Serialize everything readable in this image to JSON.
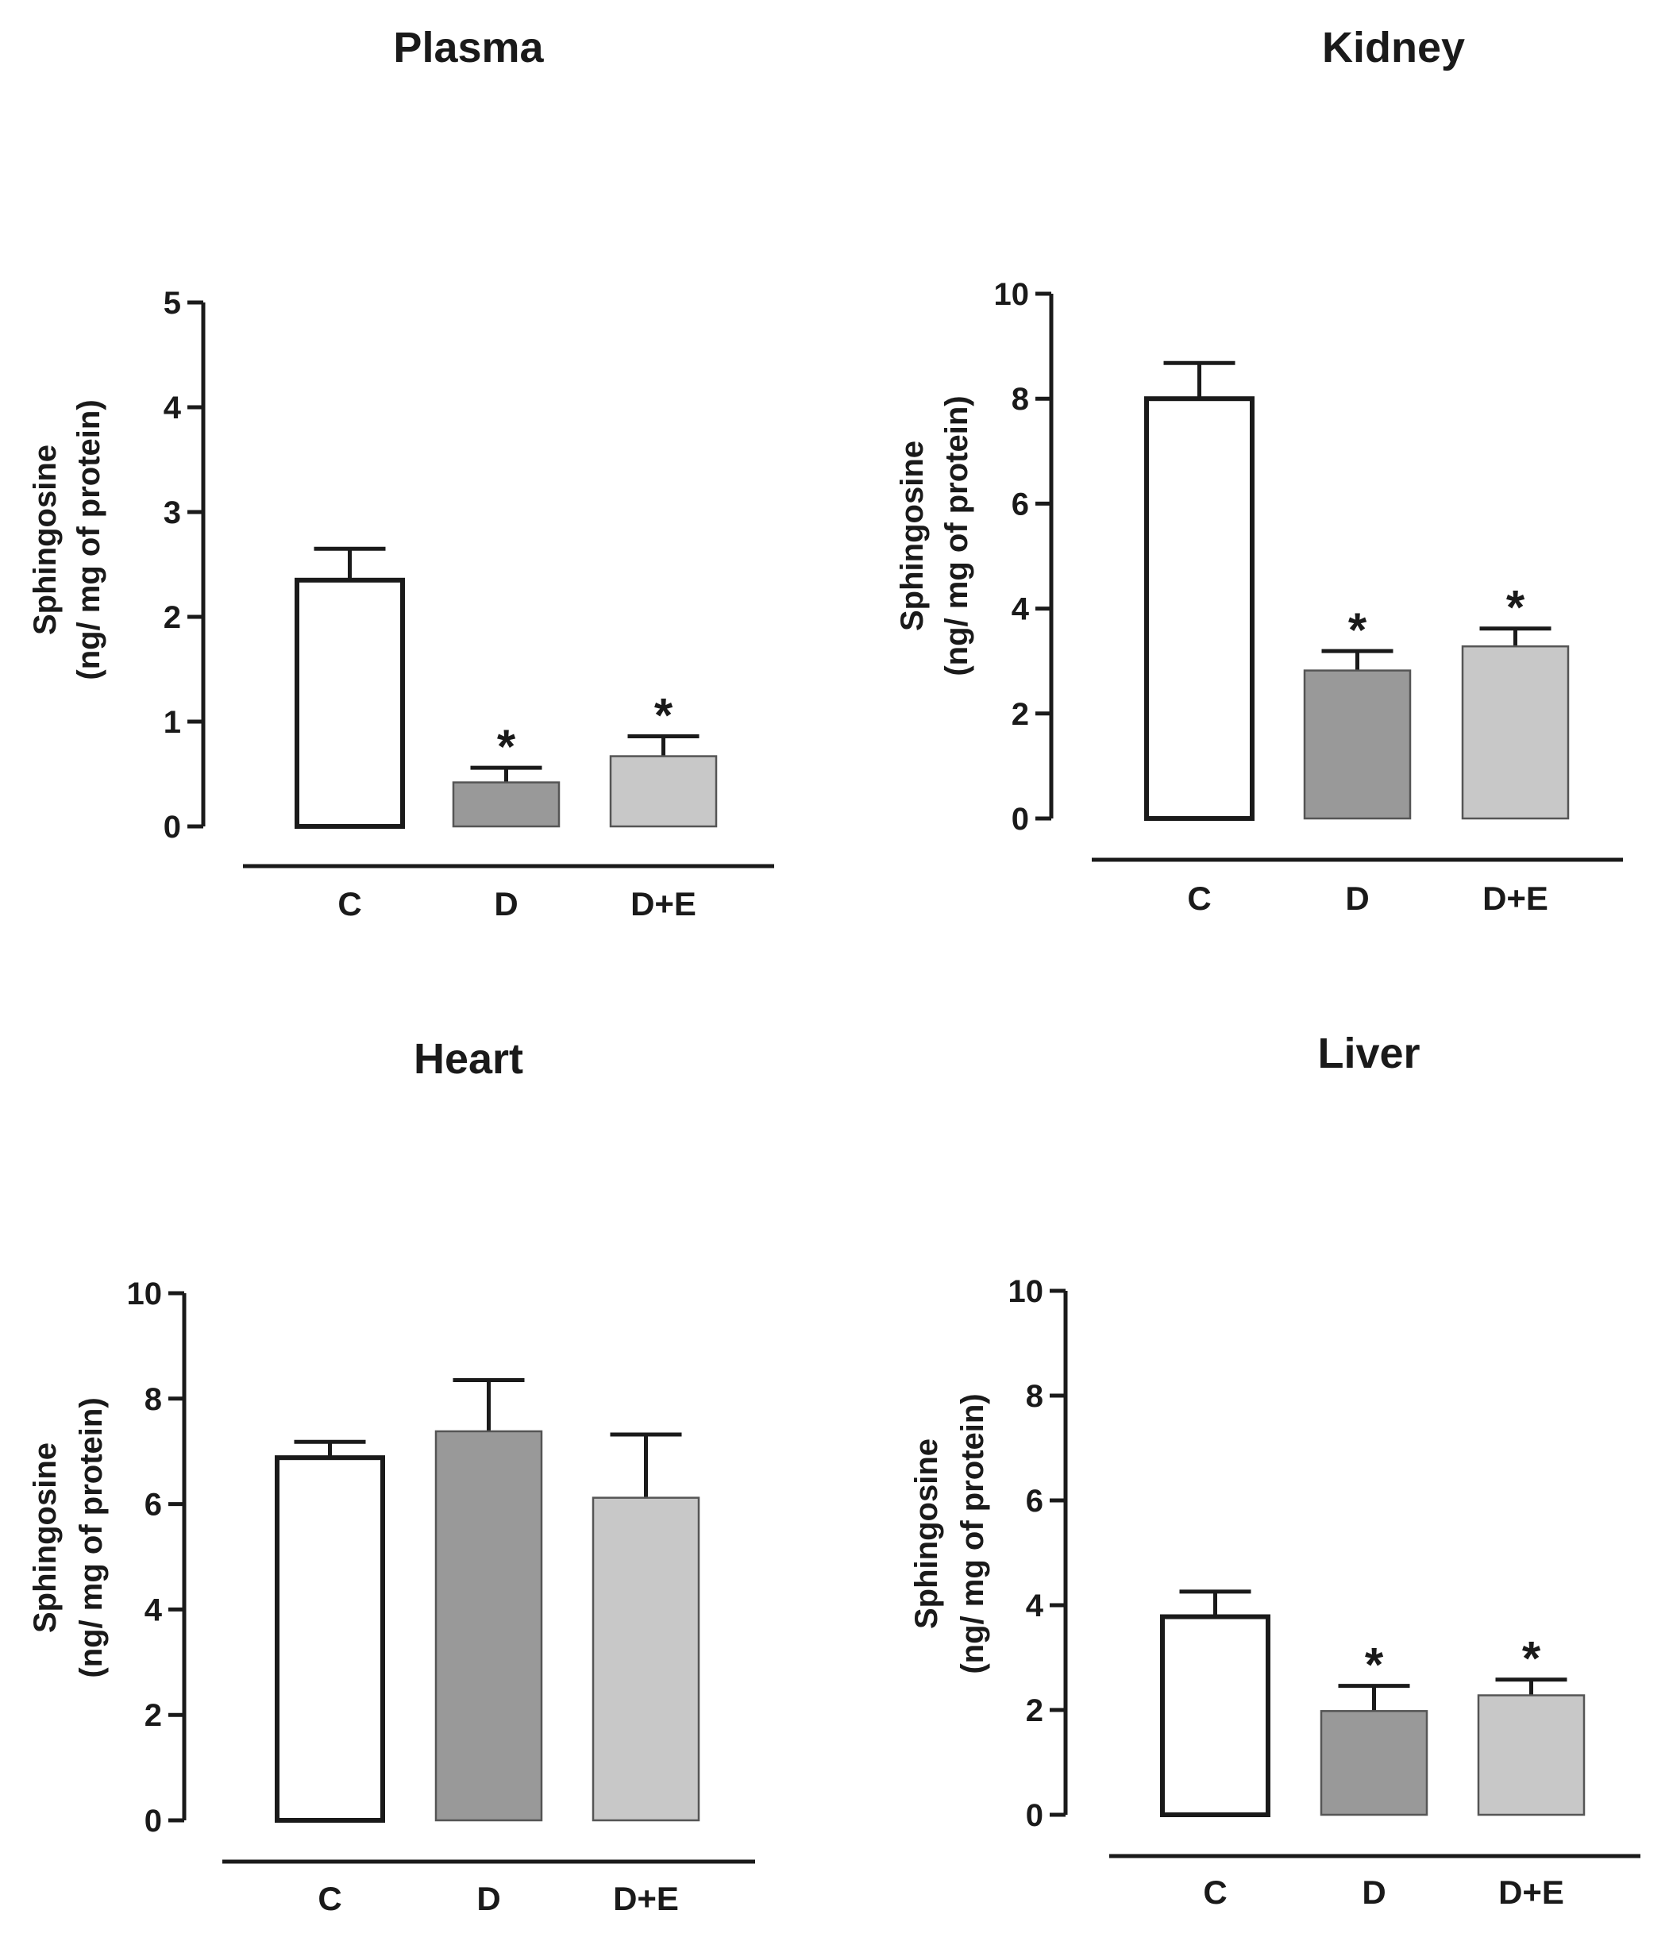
{
  "figure": {
    "panel_order": [
      "plasma",
      "kidney",
      "heart",
      "liver"
    ]
  },
  "colors": {
    "C": "#ffffff",
    "D": "#999999",
    "D+E": "#c8c8c8",
    "axis": "#1a1a1a"
  },
  "chart_data": [
    {
      "id": "plasma",
      "type": "bar",
      "title": "Plasma",
      "ylabel_line1": "Sphingosine",
      "ylabel_line2": "(ng/ mg of protein)",
      "xlabel": "",
      "categories": [
        "C",
        "D",
        "D+E"
      ],
      "values": [
        2.35,
        0.42,
        0.67
      ],
      "errors": [
        0.3,
        0.14,
        0.19
      ],
      "significance": [
        "",
        "*",
        "*"
      ],
      "ylim": [
        0,
        5
      ],
      "yticks": [
        0,
        1,
        2,
        3,
        4,
        5
      ],
      "ytick_labels": [
        "0",
        "1",
        "2",
        "3",
        "4",
        "5"
      ]
    },
    {
      "id": "kidney",
      "type": "bar",
      "title": "Kidney",
      "ylabel_line1": "Sphingosine",
      "ylabel_line2": "(ng/ mg of protein)",
      "xlabel": "",
      "categories": [
        "C",
        "D",
        "D+E"
      ],
      "values": [
        8.0,
        2.82,
        3.28
      ],
      "errors": [
        0.68,
        0.37,
        0.34
      ],
      "significance": [
        "",
        "*",
        "*"
      ],
      "ylim": [
        0,
        10
      ],
      "yticks": [
        0,
        2,
        4,
        6,
        8,
        10
      ],
      "ytick_labels": [
        "0",
        "2",
        "4",
        "6",
        "8",
        "10"
      ]
    },
    {
      "id": "heart",
      "type": "bar",
      "title": "Heart",
      "ylabel_line1": "Sphingosine",
      "ylabel_line2": "(ng/ mg of protein)",
      "xlabel": "",
      "categories": [
        "C",
        "D",
        "D+E"
      ],
      "values": [
        6.88,
        7.38,
        6.12
      ],
      "errors": [
        0.3,
        0.97,
        1.2
      ],
      "significance": [
        "",
        "",
        ""
      ],
      "ylim": [
        0,
        10
      ],
      "yticks": [
        0,
        2,
        4,
        6,
        8,
        10
      ],
      "ytick_labels": [
        "0",
        "2",
        "4",
        "6",
        "8",
        "10"
      ]
    },
    {
      "id": "liver",
      "type": "bar",
      "title": "Liver",
      "ylabel_line1": "Sphingosine",
      "ylabel_line2": "(ng/ mg of protein)",
      "xlabel": "",
      "categories": [
        "C",
        "D",
        "D+E"
      ],
      "values": [
        3.78,
        1.98,
        2.28
      ],
      "errors": [
        0.48,
        0.48,
        0.3
      ],
      "significance": [
        "",
        "*",
        "*"
      ],
      "ylim": [
        0,
        10
      ],
      "yticks": [
        0,
        2,
        4,
        6,
        8,
        10
      ],
      "ytick_labels": [
        "0",
        "2",
        "4",
        "6",
        "8",
        "10"
      ]
    }
  ]
}
